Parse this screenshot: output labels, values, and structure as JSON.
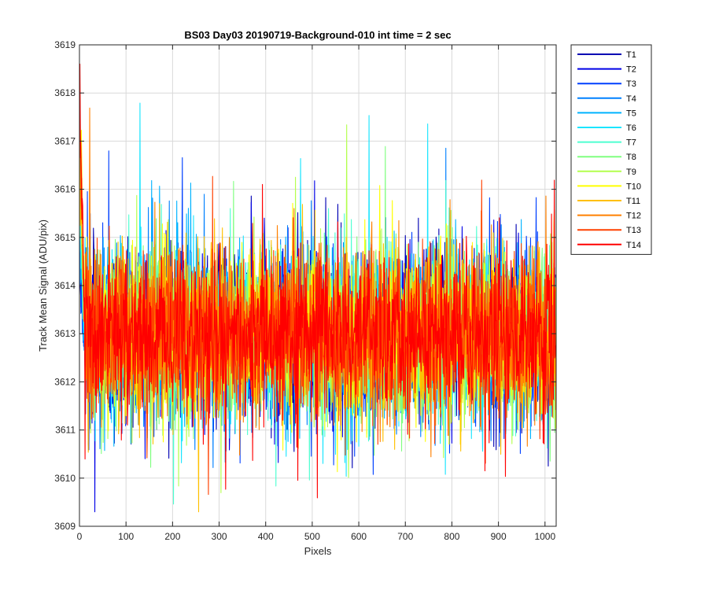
{
  "chart_data": {
    "type": "line",
    "title": "BS03 Day03 20190719-Background-010 int time = 2 sec",
    "xlabel": "Pixels",
    "ylabel": "Track Mean Signal (ADU/pix)",
    "xlim": [
      0,
      1024
    ],
    "ylim": [
      3609,
      3619
    ],
    "xticks": [
      0,
      100,
      200,
      300,
      400,
      500,
      600,
      700,
      800,
      900,
      1000
    ],
    "yticks": [
      3609,
      3610,
      3611,
      3612,
      3613,
      3614,
      3615,
      3616,
      3617,
      3618,
      3619
    ],
    "grid": true,
    "legend_position": "outside-right-top",
    "n_points": 1024,
    "series": [
      {
        "name": "T1",
        "color": "#0000b3",
        "mean": 3613.0,
        "start": 3614.0
      },
      {
        "name": "T2",
        "color": "#0000e6",
        "mean": 3613.0,
        "start": 3614.5
      },
      {
        "name": "T3",
        "color": "#0040ff",
        "mean": 3613.0,
        "start": 3614.3
      },
      {
        "name": "T4",
        "color": "#0080ff",
        "mean": 3613.0,
        "start": 3614.8
      },
      {
        "name": "T5",
        "color": "#00b3ff",
        "mean": 3613.0,
        "start": 3615.0
      },
      {
        "name": "T6",
        "color": "#1ae5ff",
        "mean": 3613.0,
        "start": 3615.2
      },
      {
        "name": "T7",
        "color": "#4dffd1",
        "mean": 3613.0,
        "start": 3615.5
      },
      {
        "name": "T8",
        "color": "#80ff80",
        "mean": 3613.0,
        "start": 3615.8
      },
      {
        "name": "T9",
        "color": "#b3ff4d",
        "mean": 3613.0,
        "start": 3616.2
      },
      {
        "name": "T10",
        "color": "#ffff00",
        "mean": 3613.0,
        "start": 3618.6
      },
      {
        "name": "T11",
        "color": "#ffc000",
        "mean": 3613.0,
        "start": 3616.8
      },
      {
        "name": "T12",
        "color": "#ff8000",
        "mean": 3613.0,
        "start": 3617.2
      },
      {
        "name": "T13",
        "color": "#ff4000",
        "mean": 3613.0,
        "start": 3617.6
      },
      {
        "name": "T14",
        "color": "#ff0000",
        "mean": 3613.0,
        "start": 3618.0
      }
    ]
  }
}
